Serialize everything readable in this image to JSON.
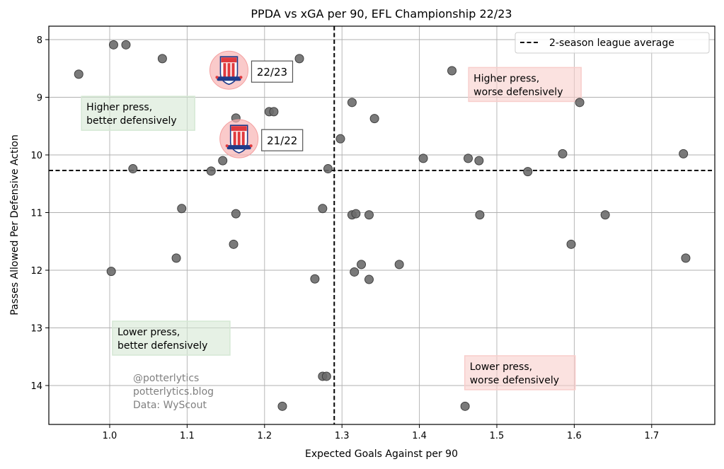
{
  "chart_data": {
    "type": "scatter",
    "title": "PPDA vs xGA per 90, EFL Championship 22/23",
    "xlabel": "Expected Goals Against per 90",
    "ylabel": "Passes Allowed Per Defensive Action",
    "xlim": [
      0.92,
      1.78
    ],
    "ylim": [
      14.65,
      7.77
    ],
    "y_inverted": true,
    "grid": true,
    "xticks": [
      1.0,
      1.1,
      1.2,
      1.3,
      1.4,
      1.5,
      1.6,
      1.7
    ],
    "xtick_labels": [
      "1.0",
      "1.1",
      "1.2",
      "1.3",
      "1.4",
      "1.5",
      "1.6",
      "1.7"
    ],
    "yticks": [
      8,
      9,
      10,
      11,
      12,
      13,
      14
    ],
    "ytick_labels": [
      "8",
      "9",
      "10",
      "11",
      "12",
      "13",
      "14"
    ],
    "point_color": "#6b6b6b",
    "points": [
      {
        "x": 0.96,
        "y": 8.6
      },
      {
        "x": 1.005,
        "y": 8.09
      },
      {
        "x": 1.021,
        "y": 8.09
      },
      {
        "x": 1.068,
        "y": 8.33
      },
      {
        "x": 1.245,
        "y": 8.33
      },
      {
        "x": 1.442,
        "y": 8.54
      },
      {
        "x": 1.206,
        "y": 9.25
      },
      {
        "x": 1.212,
        "y": 9.25
      },
      {
        "x": 1.163,
        "y": 9.36
      },
      {
        "x": 1.313,
        "y": 9.09
      },
      {
        "x": 1.342,
        "y": 9.37
      },
      {
        "x": 1.607,
        "y": 9.09
      },
      {
        "x": 1.298,
        "y": 9.72
      },
      {
        "x": 1.03,
        "y": 10.24
      },
      {
        "x": 1.146,
        "y": 10.1
      },
      {
        "x": 1.131,
        "y": 10.28
      },
      {
        "x": 1.282,
        "y": 10.24
      },
      {
        "x": 1.405,
        "y": 10.06
      },
      {
        "x": 1.463,
        "y": 10.06
      },
      {
        "x": 1.477,
        "y": 10.1
      },
      {
        "x": 1.54,
        "y": 10.29
      },
      {
        "x": 1.585,
        "y": 9.98
      },
      {
        "x": 1.741,
        "y": 9.98
      },
      {
        "x": 1.093,
        "y": 10.93
      },
      {
        "x": 1.163,
        "y": 11.02
      },
      {
        "x": 1.275,
        "y": 10.93
      },
      {
        "x": 1.313,
        "y": 11.04
      },
      {
        "x": 1.318,
        "y": 11.02
      },
      {
        "x": 1.335,
        "y": 11.04
      },
      {
        "x": 1.478,
        "y": 11.04
      },
      {
        "x": 1.64,
        "y": 11.04
      },
      {
        "x": 1.16,
        "y": 11.55
      },
      {
        "x": 1.596,
        "y": 11.55
      },
      {
        "x": 1.086,
        "y": 11.79
      },
      {
        "x": 1.744,
        "y": 11.79
      },
      {
        "x": 1.002,
        "y": 12.02
      },
      {
        "x": 1.325,
        "y": 11.9
      },
      {
        "x": 1.374,
        "y": 11.9
      },
      {
        "x": 1.316,
        "y": 12.03
      },
      {
        "x": 1.265,
        "y": 12.15
      },
      {
        "x": 1.335,
        "y": 12.16
      },
      {
        "x": 1.275,
        "y": 13.84
      },
      {
        "x": 1.28,
        "y": 13.84
      },
      {
        "x": 1.223,
        "y": 14.36
      },
      {
        "x": 1.459,
        "y": 14.36
      }
    ],
    "highlight_points": [
      {
        "label": "22/23",
        "team": "Stoke City",
        "x": 1.154,
        "y": 8.53
      },
      {
        "label": "21/22",
        "team": "Stoke City",
        "x": 1.167,
        "y": 9.72
      }
    ],
    "reference_lines": {
      "x_average": 1.29,
      "y_average": 10.27,
      "style": "dashed",
      "color": "#000000"
    },
    "legend": {
      "position": "top-right",
      "entries": [
        {
          "label": "2-season league average",
          "style": "dashed",
          "color": "#000000"
        }
      ]
    },
    "quadrant_labels": [
      {
        "text_lines": [
          "Higher press,",
          "better defensively"
        ],
        "x": 0.97,
        "y": 9.45,
        "color": "#d5e8d4"
      },
      {
        "text_lines": [
          "Higher press,",
          "worse defensively"
        ],
        "x": 1.47,
        "y": 8.95,
        "color": "#f8cecc"
      },
      {
        "text_lines": [
          "Lower press,",
          "better defensively"
        ],
        "x": 1.01,
        "y": 13.35,
        "color": "#d5e8d4"
      },
      {
        "text_lines": [
          "Lower press,",
          "worse defensively"
        ],
        "x": 1.465,
        "y": 13.95,
        "color": "#f8cecc"
      }
    ],
    "credits": [
      "@potterlytics",
      "potterlytics.blog",
      "Data: WyScout"
    ]
  },
  "badge": {
    "text_top": "STOKE",
    "text_city": "CITY",
    "year": "1863",
    "motto": "THE POTTERS"
  }
}
